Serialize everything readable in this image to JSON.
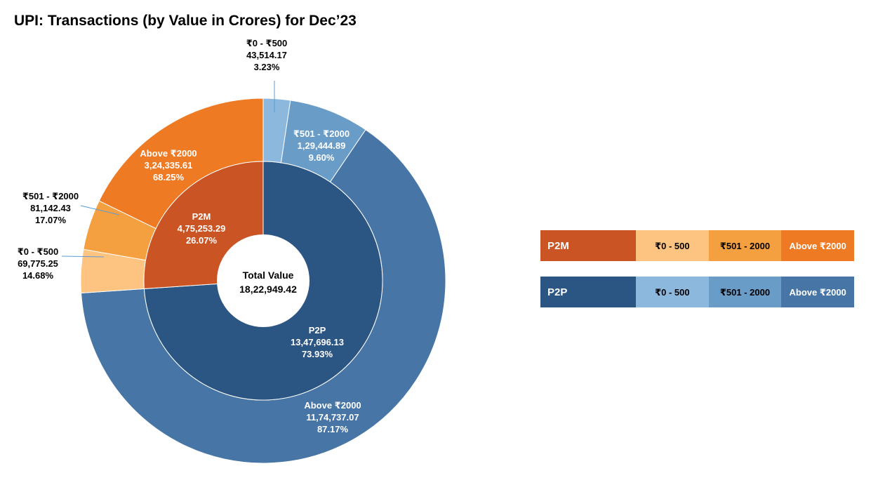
{
  "title": "UPI: Transactions (by Value in Crores) for Dec’23",
  "center": {
    "label": "Total Value",
    "value": "18,22,949.42"
  },
  "colors": {
    "p2m_inner": "#CB5424",
    "p2m_0_500": "#FDC381",
    "p2m_501_2000": "#F5A040",
    "p2m_above_2000": "#EE7A24",
    "p2p_inner": "#2B5582",
    "p2p_0_500": "#8DB8DE",
    "p2p_501_2000": "#6A9CC8",
    "p2p_above_2000": "#4776A6"
  },
  "legend": {
    "p2m": {
      "label": "P2M",
      "c1": "₹0 - 500",
      "c2": "₹501 - 2000",
      "c3": "Above ₹2000"
    },
    "p2p": {
      "label": "P2P",
      "c1": "₹0 - 500",
      "c2": "₹501 - 2000",
      "c3": "Above ₹2000"
    }
  },
  "chart_data": {
    "type": "sunburst",
    "title": "UPI: Transactions (by Value in Crores) for Dec’23",
    "total": {
      "label": "Total Value",
      "value": 1822949.42,
      "display": "18,22,949.42"
    },
    "inner_ring": [
      {
        "name": "P2P",
        "value": 1347696.13,
        "display": "13,47,696.13",
        "percent": "73.93%"
      },
      {
        "name": "P2M",
        "value": 475253.29,
        "display": "4,75,253.29",
        "percent": "26.07%"
      }
    ],
    "outer_ring": [
      {
        "parent": "P2P",
        "name": "₹0 - ₹500",
        "value": 43514.17,
        "display": "43,514.17",
        "percent": "3.23%"
      },
      {
        "parent": "P2P",
        "name": "₹501 - ₹2000",
        "value": 129444.89,
        "display": "1,29,444.89",
        "percent": "9.60%"
      },
      {
        "parent": "P2P",
        "name": "Above ₹2000",
        "value": 1174737.07,
        "display": "11,74,737.07",
        "percent": "87.17%"
      },
      {
        "parent": "P2M",
        "name": "₹0 - ₹500",
        "value": 69775.25,
        "display": "69,775.25",
        "percent": "14.68%"
      },
      {
        "parent": "P2M",
        "name": "₹501 - ₹2000",
        "value": 81142.43,
        "display": "81,142.43",
        "percent": "17.07%"
      },
      {
        "parent": "P2M",
        "name": "Above ₹2000",
        "value": 324335.61,
        "display": "3,24,335.61",
        "percent": "68.25%"
      }
    ]
  }
}
